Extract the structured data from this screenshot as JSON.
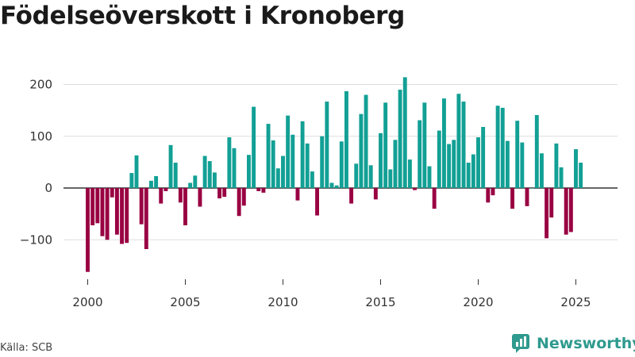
{
  "title": "Födelseöverskott i Kronoberg",
  "source": "Källa: SCB",
  "brand": {
    "name": "Newsworthy",
    "color": "#2f9a8e"
  },
  "colors": {
    "positive": "#12a095",
    "negative": "#990042",
    "grid": "#dddddd",
    "axis": "#333333"
  },
  "chart_data": {
    "type": "bar",
    "title": "Födelseöverskott i Kronoberg",
    "xlabel": "",
    "ylabel": "",
    "frequency": "quarterly",
    "start": "2000Q1",
    "ylim": [
      -165,
      220
    ],
    "yticks": [
      -100,
      0,
      100,
      200
    ],
    "ytick_labels": [
      "−100",
      "0",
      "100",
      "200"
    ],
    "xticks": [
      2000,
      2005,
      2010,
      2015,
      2020,
      2025
    ],
    "xtick_labels": [
      "2000",
      "2005",
      "2010",
      "2015",
      "2020",
      "2025"
    ],
    "values": [
      -162,
      -72,
      -68,
      -93,
      -100,
      -18,
      -90,
      -108,
      -106,
      29,
      63,
      -70,
      -118,
      14,
      23,
      -30,
      -6,
      83,
      49,
      -28,
      -72,
      10,
      24,
      -36,
      62,
      52,
      30,
      -20,
      -17,
      98,
      77,
      -54,
      -34,
      64,
      157,
      -6,
      -9,
      124,
      92,
      38,
      62,
      140,
      103,
      -24,
      129,
      86,
      32,
      -53,
      100,
      167,
      10,
      5,
      90,
      187,
      -30,
      47,
      143,
      180,
      44,
      -22,
      106,
      165,
      36,
      93,
      190,
      214,
      55,
      -4,
      131,
      165,
      42,
      -40,
      111,
      173,
      85,
      93,
      182,
      167,
      49,
      65,
      98,
      118,
      -28,
      -14,
      159,
      155,
      91,
      -40,
      130,
      88,
      -35,
      0,
      141,
      67,
      -97,
      -57,
      86,
      40,
      -90,
      -85,
      75,
      49
    ]
  }
}
